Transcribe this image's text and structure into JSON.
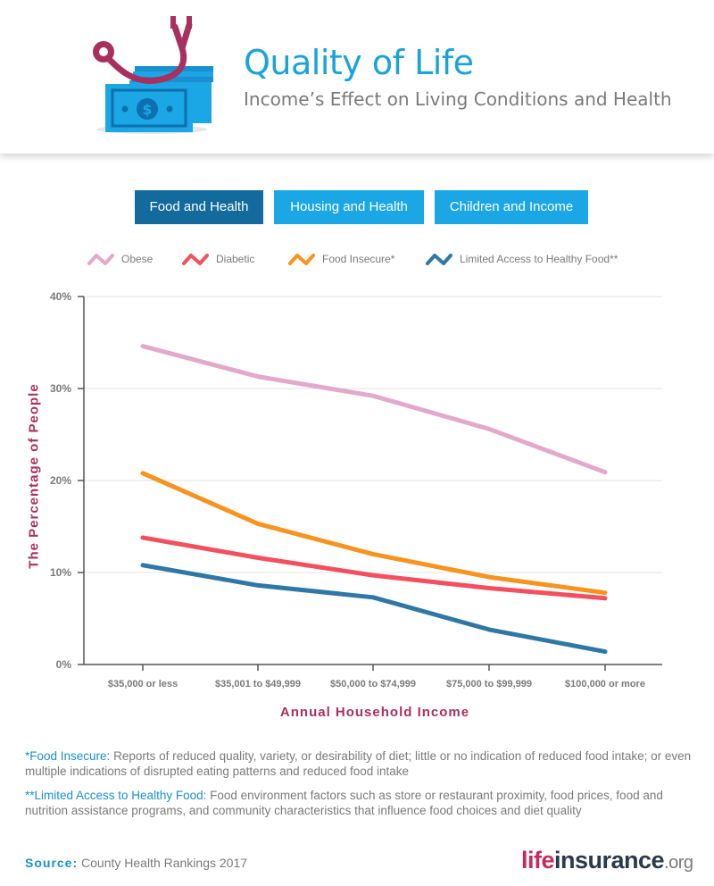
{
  "header": {
    "title": "Quality of Life",
    "subtitle": "Income’s Effect on Living Conditions and Health"
  },
  "tabs": [
    {
      "label": "Food and Health",
      "active": true
    },
    {
      "label": "Housing and Health",
      "active": false
    },
    {
      "label": "Children and Income",
      "active": false
    }
  ],
  "colors": {
    "obese": "#e2a9cb",
    "diabetic": "#f2505f",
    "food_insecure": "#f7931e",
    "limited_access": "#2f78a6",
    "tab_active": "#136a9c",
    "tab_inactive": "#1ba6e6",
    "axis_label": "#a8305e"
  },
  "chart_data": {
    "type": "line",
    "title": "",
    "xlabel": "Annual Household Income",
    "ylabel": "The Percentage of People",
    "categories": [
      "$35,000 or less",
      "$35,001 to $49,999",
      "$50,000 to $74,999",
      "$75,000 to $99,999",
      "$100,000 or more"
    ],
    "yticks": [
      "0%",
      "10%",
      "20%",
      "30%",
      "40%"
    ],
    "ylim": [
      0,
      40
    ],
    "grid": true,
    "legend_position": "top",
    "series": [
      {
        "name": "Obese",
        "color": "#e2a9cb",
        "values": [
          34.6,
          31.3,
          29.2,
          25.6,
          20.9
        ]
      },
      {
        "name": "Diabetic",
        "color": "#f2505f",
        "values": [
          13.8,
          11.6,
          9.7,
          8.3,
          7.2
        ]
      },
      {
        "name": "Food Insecure*",
        "color": "#f7931e",
        "values": [
          20.8,
          15.3,
          12.0,
          9.5,
          7.8
        ]
      },
      {
        "name": "Limited Access to Healthy Food**",
        "color": "#2f78a6",
        "values": [
          10.8,
          8.6,
          7.3,
          3.8,
          1.4
        ]
      }
    ]
  },
  "notes": {
    "food_insecure_term": "*Food Insecure:",
    "food_insecure_text": " Reports of reduced quality, variety, or desirability of diet; little or no indication of reduced food intake; or even multiple indications of disrupted eating patterns and reduced food intake",
    "limited_access_term": "**Limited Access to Healthy Food:",
    "limited_access_text": " Food environment factors such as store or restaurant proximity, food prices, food and nutrition assistance programs, and community characteristics that influence food choices and diet quality"
  },
  "footer": {
    "source_label": "Source:",
    "source_text": " County Health Rankings 2017",
    "brand_life": "life",
    "brand_insurance": "insurance",
    "brand_org": ".org"
  }
}
